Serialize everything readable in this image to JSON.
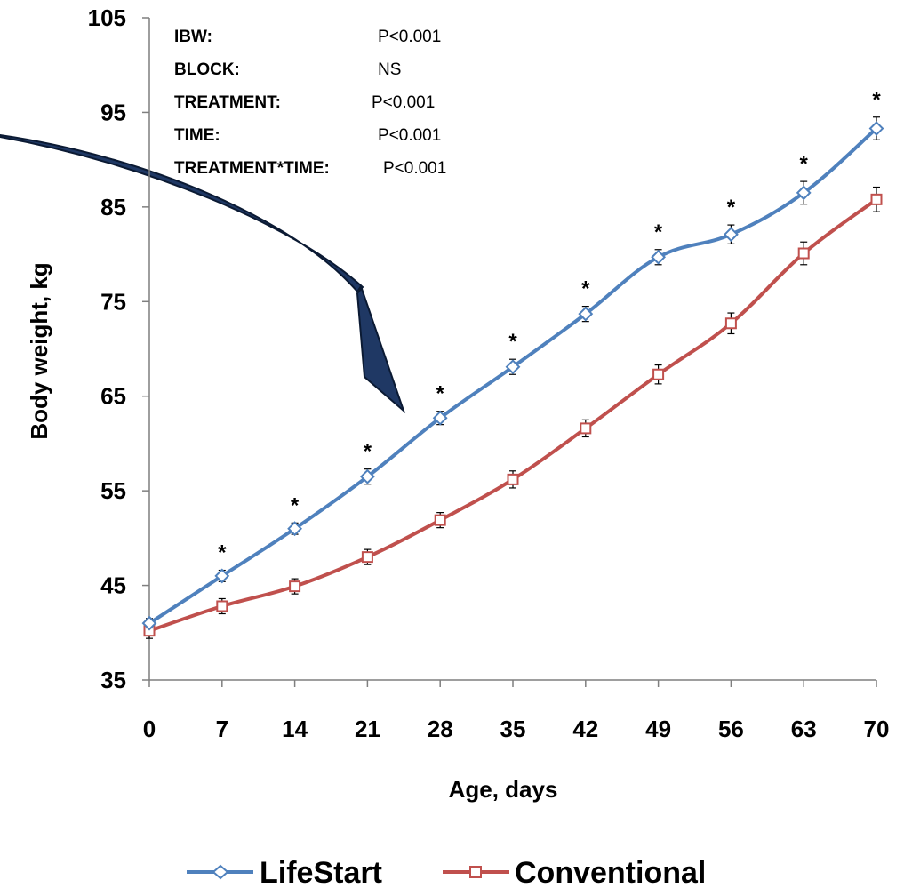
{
  "chart_data": {
    "type": "line",
    "xlabel": "Age, days",
    "ylabel": "Body weight, kg",
    "x": [
      0,
      7,
      14,
      21,
      28,
      35,
      42,
      49,
      56,
      63,
      70
    ],
    "ylim": [
      35,
      105
    ],
    "yticks": [
      35,
      45,
      55,
      65,
      75,
      85,
      95,
      105
    ],
    "grid": false,
    "legend_position": "bottom",
    "series": [
      {
        "name": "LifeStart",
        "color": "#4F81BD",
        "marker": "diamond",
        "values": [
          41.0,
          46.0,
          51.0,
          56.5,
          62.7,
          68.1,
          73.7,
          79.7,
          82.1,
          86.5,
          93.3
        ],
        "error": [
          0.5,
          0.6,
          0.6,
          0.8,
          0.7,
          0.8,
          0.8,
          0.8,
          1.0,
          1.2,
          1.2
        ]
      },
      {
        "name": "Conventional",
        "color": "#C0504D",
        "marker": "square",
        "values": [
          40.2,
          42.8,
          44.9,
          48.0,
          51.9,
          56.2,
          61.6,
          67.3,
          72.7,
          80.1,
          85.8
        ],
        "error": [
          0.8,
          0.8,
          0.8,
          0.8,
          0.8,
          0.9,
          0.9,
          1.0,
          1.1,
          1.2,
          1.3
        ]
      }
    ],
    "significance_marker": "*",
    "significant_x": [
      7,
      14,
      21,
      28,
      35,
      42,
      49,
      56,
      63,
      70
    ],
    "stats_table": [
      {
        "term": "IBW:",
        "p": "P<0.001"
      },
      {
        "term": "BLOCK:",
        "p": "NS"
      },
      {
        "term": "TREATMENT:",
        "p": "P<0.001"
      },
      {
        "term": "TIME:",
        "p": "P<0.001"
      },
      {
        "term": "TREATMENT*TIME:",
        "p": "P<0.001"
      }
    ],
    "annotation_arrow_color": "#1F3864"
  }
}
